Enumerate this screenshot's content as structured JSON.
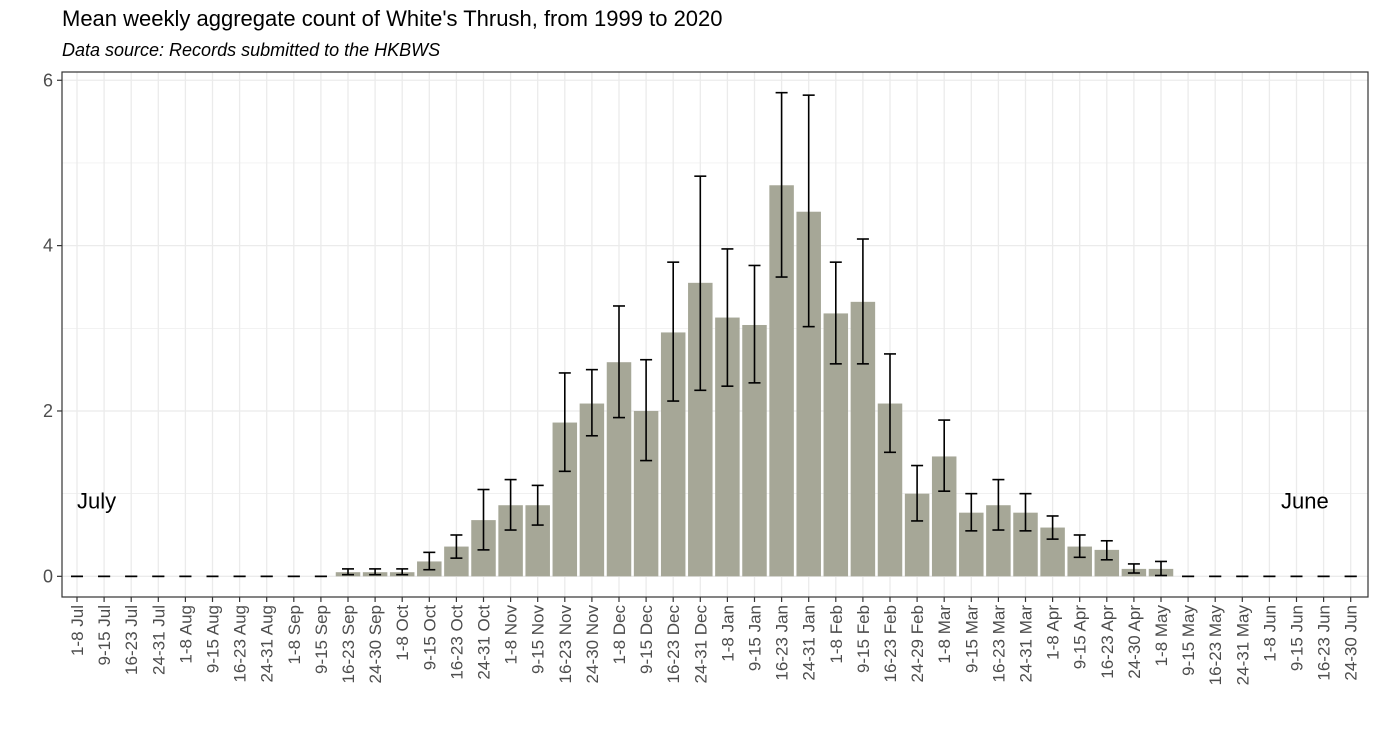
{
  "chart_data": {
    "type": "bar",
    "title": "Mean weekly aggregate count of White's Thrush, from 1999 to 2020",
    "subtitle": "Data source: Records submitted to the HKBWS",
    "xlabel": "",
    "ylabel": "",
    "ylim": [
      0,
      6.1
    ],
    "yticks": [
      0,
      2,
      4,
      6
    ],
    "grid": true,
    "bar_color": "#a6a797",
    "categories": [
      "1-8 Jul",
      "9-15 Jul",
      "16-23 Jul",
      "24-31 Jul",
      "1-8 Aug",
      "9-15 Aug",
      "16-23 Aug",
      "24-31 Aug",
      "1-8 Sep",
      "9-15 Sep",
      "16-23 Sep",
      "24-30 Sep",
      "1-8 Oct",
      "9-15 Oct",
      "16-23 Oct",
      "24-31 Oct",
      "1-8 Nov",
      "9-15 Nov",
      "16-23 Nov",
      "24-30 Nov",
      "1-8 Dec",
      "9-15 Dec",
      "16-23 Dec",
      "24-31 Dec",
      "1-8 Jan",
      "9-15 Jan",
      "16-23 Jan",
      "24-31 Jan",
      "1-8 Feb",
      "9-15 Feb",
      "16-23 Feb",
      "24-29 Feb",
      "1-8 Mar",
      "9-15 Mar",
      "16-23 Mar",
      "24-31 Mar",
      "1-8 Apr",
      "9-15 Apr",
      "16-23 Apr",
      "24-30 Apr",
      "1-8 May",
      "9-15 May",
      "16-23 May",
      "24-31 May",
      "1-8 Jun",
      "9-15 Jun",
      "16-23 Jun",
      "24-30 Jun"
    ],
    "values": [
      0,
      0,
      0,
      0,
      0,
      0,
      0,
      0,
      0,
      0,
      0.05,
      0.05,
      0.05,
      0.18,
      0.36,
      0.68,
      0.86,
      0.86,
      1.86,
      2.09,
      2.59,
      2.0,
      2.95,
      3.55,
      3.13,
      3.04,
      4.73,
      4.41,
      3.18,
      3.32,
      2.09,
      1.0,
      1.45,
      0.77,
      0.86,
      0.77,
      0.59,
      0.36,
      0.32,
      0.09,
      0.09,
      0,
      0,
      0,
      0,
      0,
      0,
      0
    ],
    "error_low": [
      0,
      0,
      0,
      0,
      0,
      0,
      0,
      0,
      0,
      0,
      0.02,
      0.02,
      0.02,
      0.08,
      0.22,
      0.32,
      0.56,
      0.62,
      1.27,
      1.7,
      1.92,
      1.4,
      2.12,
      2.25,
      2.3,
      2.34,
      3.62,
      3.02,
      2.57,
      2.57,
      1.5,
      0.67,
      1.03,
      0.55,
      0.56,
      0.55,
      0.45,
      0.23,
      0.2,
      0.04,
      0.01,
      0,
      0,
      0,
      0,
      0,
      0,
      0
    ],
    "error_high": [
      0,
      0,
      0,
      0,
      0,
      0,
      0,
      0,
      0,
      0,
      0.09,
      0.09,
      0.09,
      0.29,
      0.5,
      1.05,
      1.17,
      1.1,
      2.46,
      2.5,
      3.27,
      2.62,
      3.8,
      4.84,
      3.96,
      3.76,
      5.85,
      5.82,
      3.8,
      4.08,
      2.69,
      1.34,
      1.89,
      1.0,
      1.17,
      1.0,
      0.73,
      0.5,
      0.43,
      0.15,
      0.18,
      0,
      0,
      0,
      0,
      0,
      0,
      0
    ],
    "annotations": [
      {
        "text": "July",
        "x": "1-8 Jul",
        "y": 0.92
      },
      {
        "text": "June",
        "x": "24-30 Jun",
        "y": 0.92
      }
    ]
  }
}
